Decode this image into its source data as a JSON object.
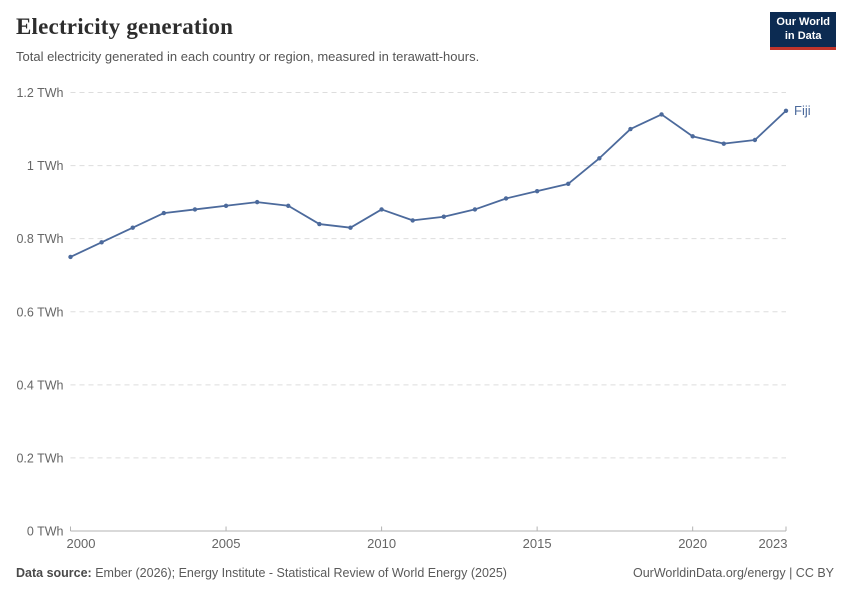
{
  "header": {
    "title": "Electricity generation",
    "subtitle": "Total electricity generated in each country or region, measured in terawatt-hours.",
    "logo": {
      "line1": "Our World",
      "line2": "in Data"
    }
  },
  "chart_data": {
    "type": "line",
    "title": "Electricity generation",
    "ylabel": "terawatt-hours",
    "xlabel": "",
    "xlim": [
      2000,
      2023
    ],
    "ylim": [
      0,
      1.2
    ],
    "grid": "dashed-horizontal",
    "legend": "end-of-line-label",
    "x": [
      2000,
      2001,
      2002,
      2003,
      2004,
      2005,
      2006,
      2007,
      2008,
      2009,
      2010,
      2011,
      2012,
      2013,
      2014,
      2015,
      2016,
      2017,
      2018,
      2019,
      2020,
      2021,
      2022,
      2023
    ],
    "series": [
      {
        "name": "Fiji",
        "color": "#4c6a9c",
        "values": [
          0.75,
          0.79,
          0.83,
          0.87,
          0.88,
          0.89,
          0.9,
          0.89,
          0.84,
          0.83,
          0.88,
          0.85,
          0.86,
          0.88,
          0.91,
          0.93,
          0.95,
          1.02,
          1.1,
          1.14,
          1.08,
          1.06,
          1.07,
          1.15
        ]
      }
    ],
    "yticks": [
      {
        "value": 0,
        "label": "0 TWh"
      },
      {
        "value": 0.2,
        "label": "0.2 TWh"
      },
      {
        "value": 0.4,
        "label": "0.4 TWh"
      },
      {
        "value": 0.6,
        "label": "0.6 TWh"
      },
      {
        "value": 0.8,
        "label": "0.8 TWh"
      },
      {
        "value": 1,
        "label": "1 TWh"
      },
      {
        "value": 1.2,
        "label": "1.2 TWh"
      }
    ],
    "xticks": [
      {
        "value": 2000,
        "label": "2000"
      },
      {
        "value": 2005,
        "label": "2005"
      },
      {
        "value": 2010,
        "label": "2010"
      },
      {
        "value": 2015,
        "label": "2015"
      },
      {
        "value": 2020,
        "label": "2020"
      },
      {
        "value": 2023,
        "label": "2023"
      }
    ]
  },
  "footer": {
    "source_label": "Data source:",
    "source_text": " Ember (2026); Energy Institute - Statistical Review of World Energy (2025)",
    "credit": "OurWorldinData.org/energy | CC BY"
  },
  "colors": {
    "line": "#4c6a9c",
    "grid": "#dddddd",
    "axis": "#b3b3b3",
    "tick_text": "#666666",
    "title_text": "#2d2d2d",
    "logo_bg": "#0c2b52",
    "logo_red": "#c0342b"
  }
}
